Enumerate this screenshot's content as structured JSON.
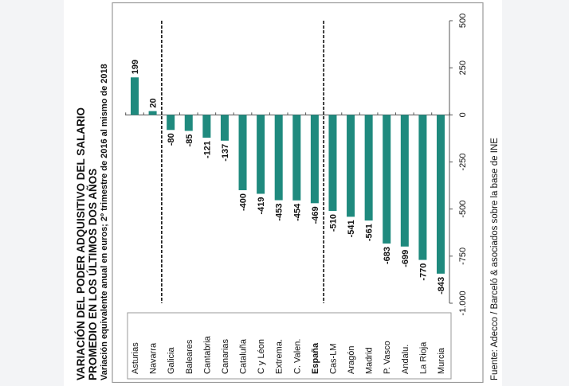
{
  "chart_data": {
    "type": "bar",
    "orientation": "rotated (text reads bottom-to-top)",
    "title": "VARIACIÓN DEL PODER ADQUISITIVO DEL SALARIO",
    "title_line2": "PROMEDIO EN LOS ÚLTIMOS DOS AÑOS",
    "subtitle": "Variación equivalente anual en euros; 2º trimestre de 2016 al mismo de 2018",
    "source": "Fuente: Adecco /  Barceló & asociados sobre la base de INE",
    "categories": [
      "Asturias",
      "Navarra",
      "Galicia",
      "Baleares",
      "Cantabria",
      "Canarias",
      "Cataluña",
      "C y Léon",
      "Extrema.",
      "C. Valen.",
      "España",
      "Cas-LM",
      "Aragón",
      "Madrid",
      "P. Vasco",
      "Andalu.",
      "La Rioja",
      "Murcia"
    ],
    "highlighted_category": "España",
    "values": [
      199,
      20,
      -80,
      -85,
      -121,
      -137,
      -400,
      -419,
      -453,
      -454,
      -469,
      -510,
      -541,
      -561,
      -683,
      -699,
      -770,
      -843
    ],
    "data_labels": [
      "199",
      "20",
      "-80",
      "-85",
      "-121",
      "-137",
      "-400",
      "-419",
      "-453",
      "-454",
      "-469",
      "-510",
      "-541",
      "-561",
      "-683",
      "-699",
      "-770",
      "-843"
    ],
    "ylim": [
      -1000,
      500
    ],
    "yticks": [
      500,
      250,
      0,
      -250,
      -500,
      -750,
      -1000
    ],
    "ytick_labels": [
      "500",
      "250",
      "0",
      "-250",
      "-500",
      "-750",
      "-1.000"
    ],
    "separators_after": [
      "Navarra",
      "España"
    ],
    "grid": false,
    "colors": {
      "bar": "#1f8a7e",
      "text": "#111111"
    }
  }
}
